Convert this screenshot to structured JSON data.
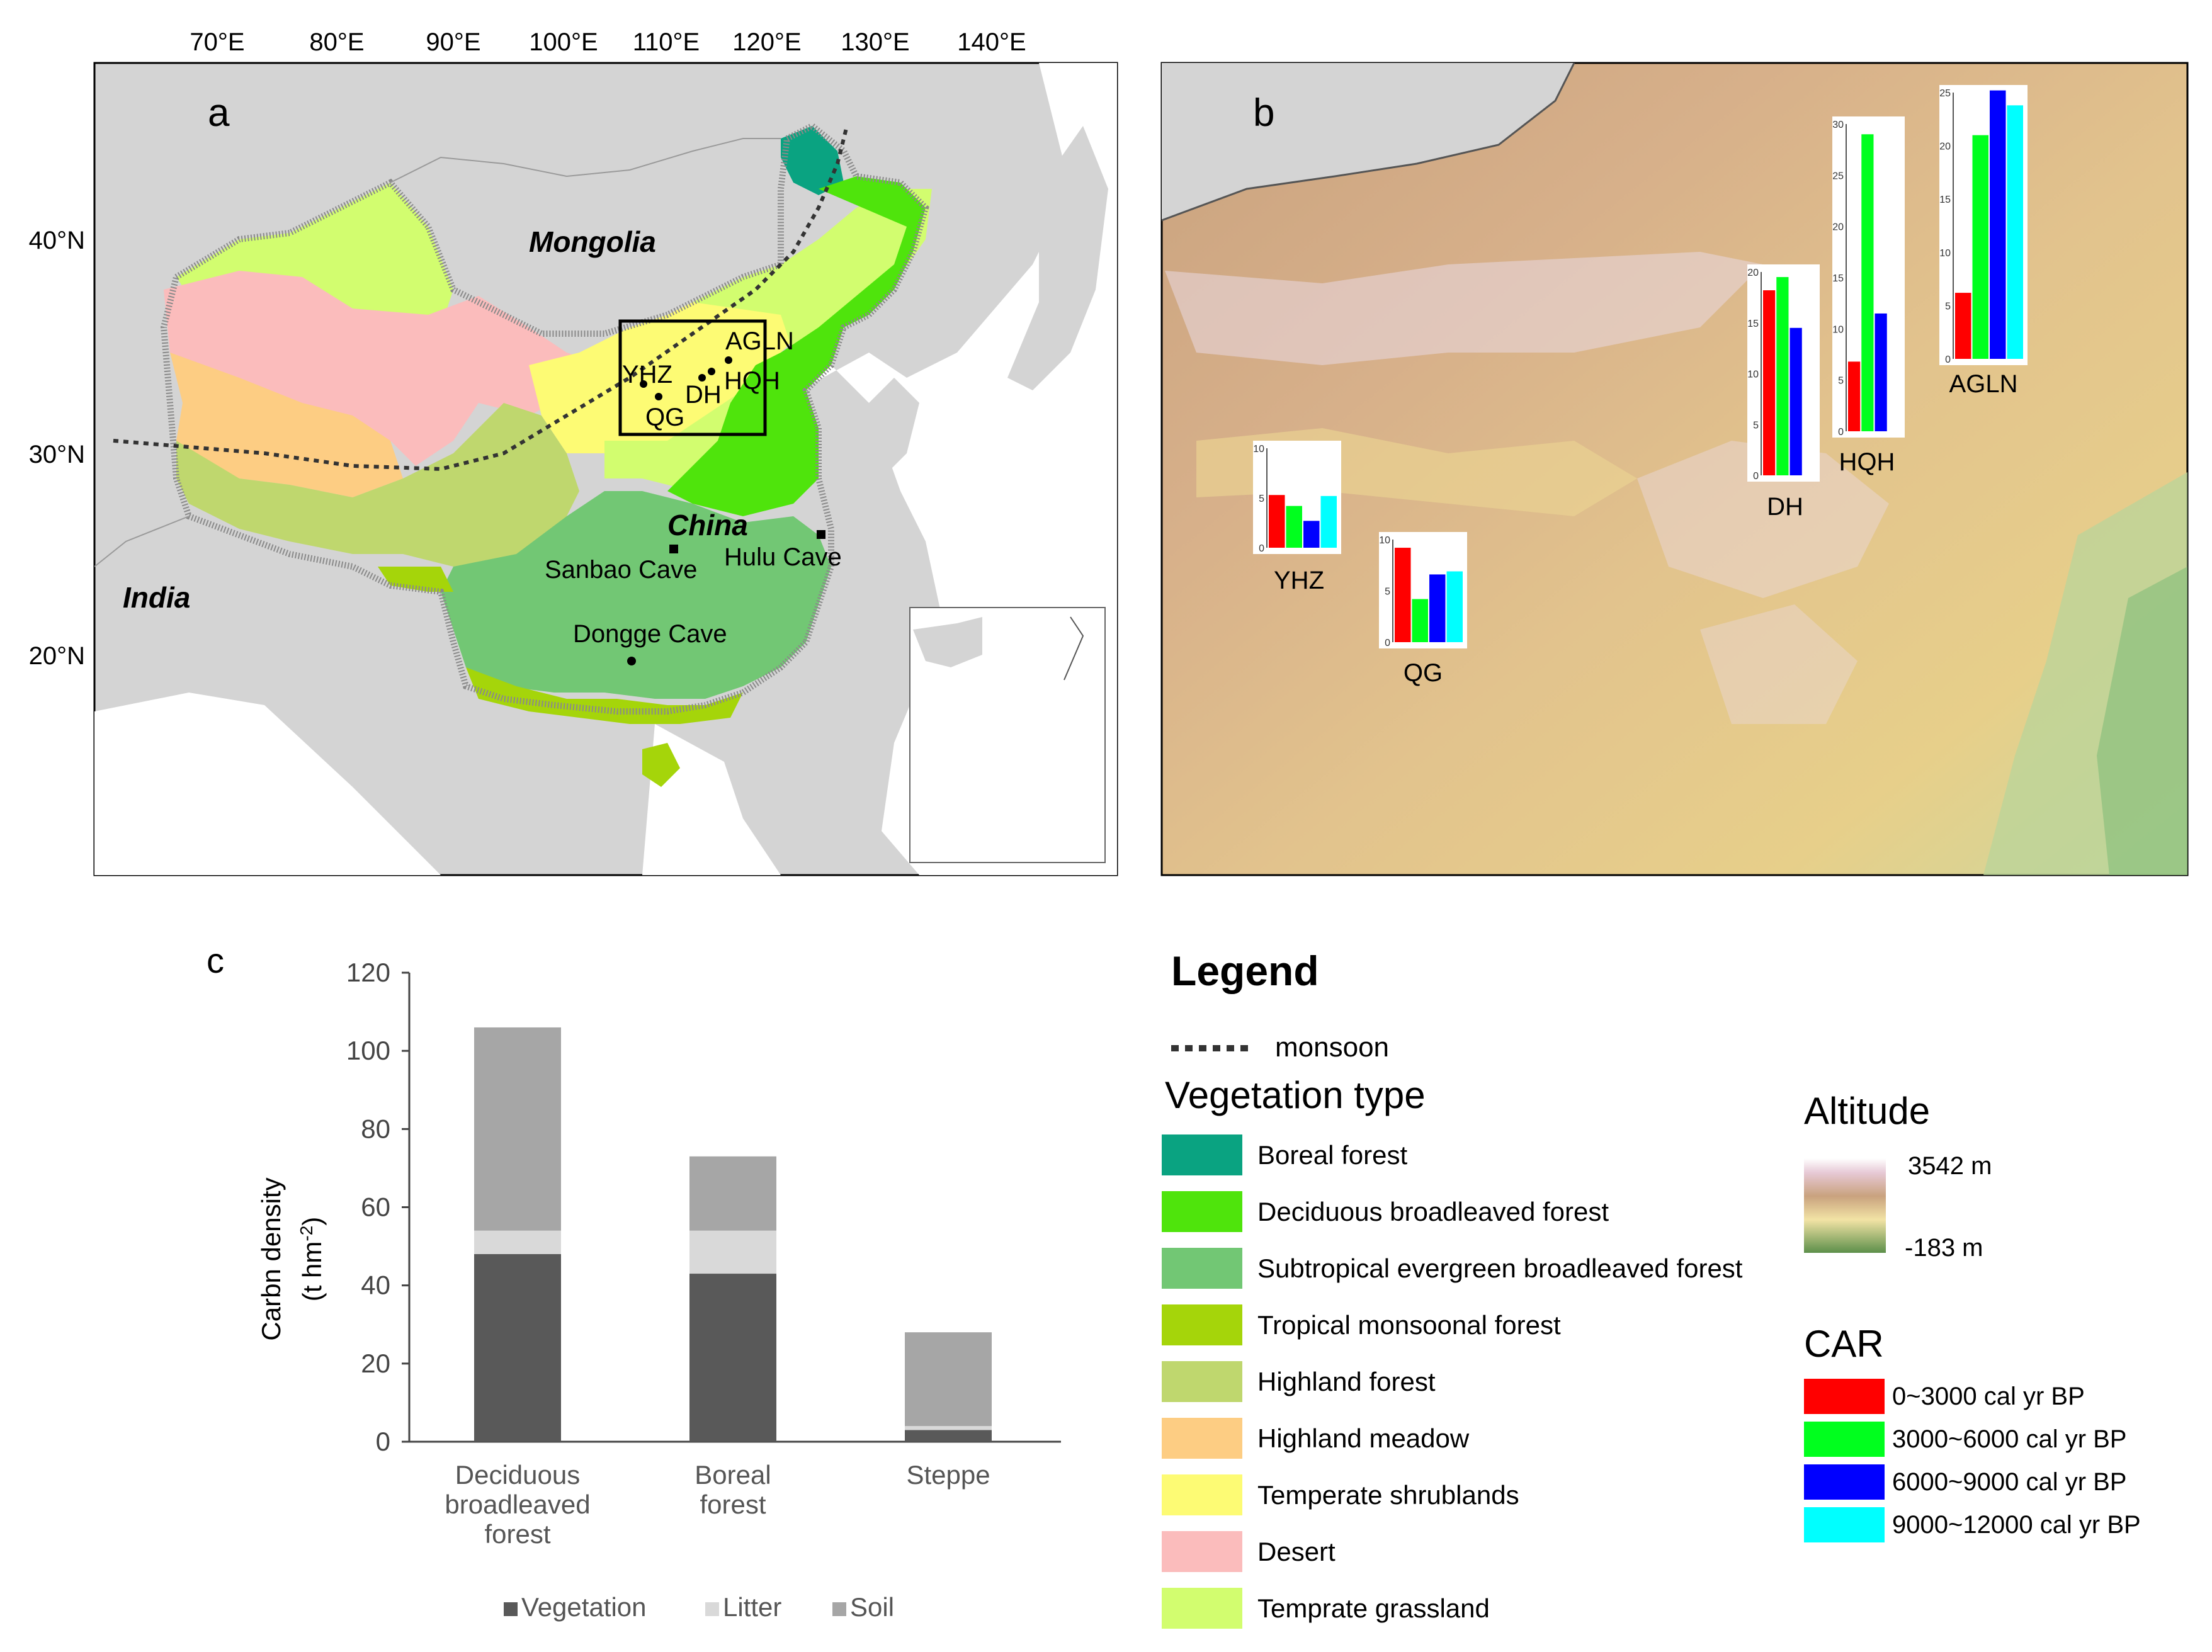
{
  "panel_a": {
    "label": "a",
    "lon_labels": [
      "70°E",
      "80°E",
      "90°E",
      "100°E",
      "110°E",
      "120°E",
      "130°E",
      "140°E"
    ],
    "lat_labels": [
      "40°N",
      "30°N",
      "20°N"
    ],
    "countries": {
      "mongolia": "Mongolia",
      "china": "China",
      "india": "India"
    },
    "sites": [
      "YHZ",
      "QG",
      "DH",
      "HQH",
      "AGLN"
    ],
    "caves": [
      "Sanbao Cave",
      "Hulu Cave",
      "Dongge Cave"
    ]
  },
  "panel_b": {
    "label": "b",
    "sites": [
      {
        "name": "YHZ",
        "ymax": "10",
        "ticks": [
          "10",
          "5",
          "0"
        ],
        "values": [
          5.3,
          4.2,
          2.7,
          5.2
        ]
      },
      {
        "name": "QG",
        "ymax": "10",
        "ticks": [
          "10",
          "5",
          "0"
        ],
        "values": [
          9.2,
          4.2,
          6.6,
          6.9
        ]
      },
      {
        "name": "DH",
        "ymax": "20",
        "ticks": [
          "20",
          "15",
          "10",
          "5",
          "0"
        ],
        "values": [
          18.2,
          19.5,
          14.5,
          0
        ]
      },
      {
        "name": "HQH",
        "ymax": "30",
        "ticks": [
          "30",
          "25",
          "20",
          "15",
          "10",
          "5",
          "0"
        ],
        "values": [
          6.8,
          29.0,
          11.5,
          0
        ]
      },
      {
        "name": "AGLN",
        "ymax": "25",
        "ticks": [
          "25",
          "20",
          "15",
          "10",
          "5",
          "0"
        ],
        "values": [
          6.2,
          21.0,
          25.2,
          23.8
        ]
      }
    ]
  },
  "chart_data": {
    "type": "bar",
    "panel_label": "c",
    "stacked": true,
    "categories": [
      "Deciduous broadleaved forest",
      "Boreal forest",
      "Steppe"
    ],
    "category_lines": [
      [
        "Deciduous",
        "broadleaved",
        "forest"
      ],
      [
        "Boreal",
        "forest"
      ],
      [
        "Steppe"
      ]
    ],
    "series": [
      {
        "name": "Vegetation",
        "values": [
          48,
          43,
          3
        ],
        "color": "#595959"
      },
      {
        "name": "Litter",
        "values": [
          6,
          11,
          1
        ],
        "color": "#d9d9d9"
      },
      {
        "name": "Soil",
        "values": [
          52,
          19,
          24
        ],
        "color": "#a6a6a6"
      }
    ],
    "ylabel_line1": "Carbn density",
    "ylabel_line2": "(t hm",
    "ylabel_sup": "-2",
    "ylabel_close": ")",
    "ylim": [
      0,
      120
    ],
    "yticks": [
      "0",
      "20",
      "40",
      "60",
      "80",
      "100",
      "120"
    ],
    "grid": false,
    "legend_position": "bottom"
  },
  "legend": {
    "title": "Legend",
    "monsoon_label": "monsoon",
    "vegetation_title": "Vegetation type",
    "vegetation_types": [
      {
        "label": "Boreal forest",
        "color": "#0aa381"
      },
      {
        "label": "Deciduous broadleaved forest",
        "color": "#4fe40c"
      },
      {
        "label": "Subtropical evergreen broadleaved forest",
        "color": "#72c774"
      },
      {
        "label": "Tropical monsoonal forest",
        "color": "#a5d50a"
      },
      {
        "label": "Highland forest",
        "color": "#bfd76e"
      },
      {
        "label": "Highland meadow",
        "color": "#fdcd83"
      },
      {
        "label": "Temperate shrublands",
        "color": "#fdfb74"
      },
      {
        "label": "Desert",
        "color": "#fbbcbc"
      },
      {
        "label": "Temprate grassland",
        "color": "#d2fd6f"
      }
    ],
    "altitude_title": "Altitude",
    "altitude_max": "3542 m",
    "altitude_min": "-183 m",
    "car_title": "CAR",
    "car_items": [
      {
        "label": "0~3000 cal yr BP",
        "color": "#ff0000"
      },
      {
        "label": "3000~6000 cal yr BP",
        "color": "#00ff1e"
      },
      {
        "label": "6000~9000 cal yr BP",
        "color": "#0000ff"
      },
      {
        "label": "9000~12000 cal yr BP",
        "color": "#00ffff"
      }
    ]
  }
}
